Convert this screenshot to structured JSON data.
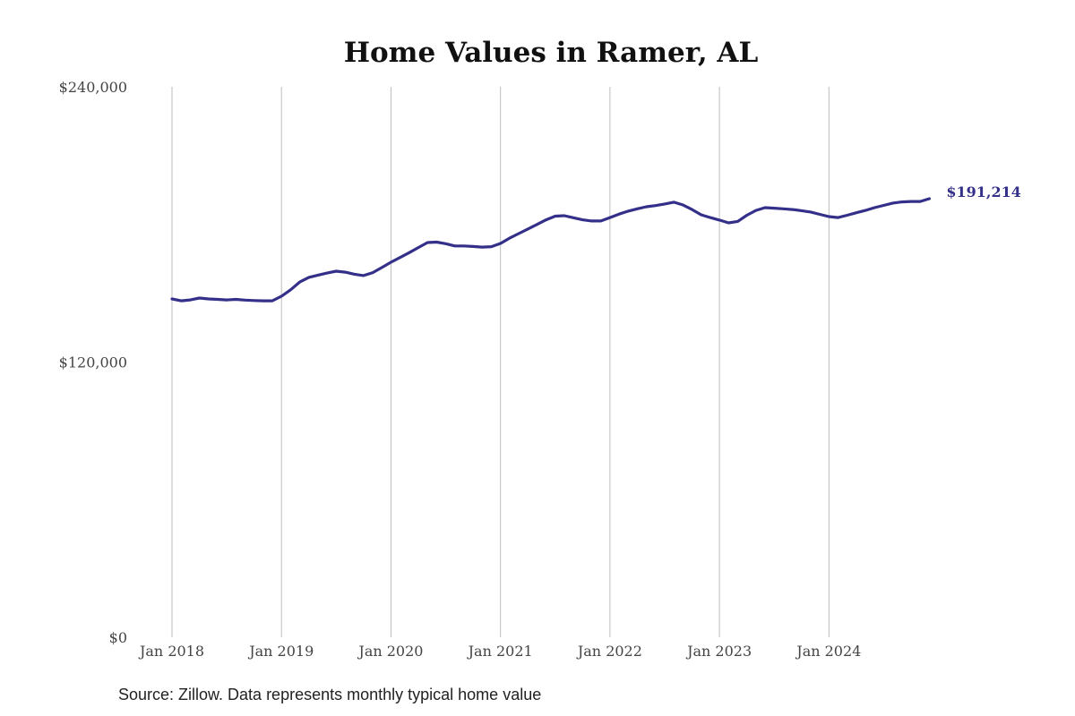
{
  "chart_data": {
    "type": "line",
    "title": "Home Values in Ramer, AL",
    "xlabel": "",
    "ylabel": "",
    "ylim": [
      0,
      240000
    ],
    "y_ticks": [
      0,
      120000,
      240000
    ],
    "y_tick_labels": [
      "$0",
      "$120,000",
      "$240,000"
    ],
    "x_tick_labels": [
      "Jan 2018",
      "Jan 2019",
      "Jan 2020",
      "Jan 2021",
      "Jan 2022",
      "Jan 2023",
      "Jan 2024"
    ],
    "x_start": "Jan 2018",
    "x_end": "Dec 2024",
    "grid": "vertical lines at each January",
    "series": [
      {
        "name": "Typical home value",
        "color": "#34308a",
        "end_label": "$191,214",
        "values": [
          147500,
          146700,
          147100,
          147900,
          147500,
          147300,
          147100,
          147300,
          147000,
          146800,
          146700,
          146700,
          148700,
          151500,
          154900,
          156900,
          157900,
          158800,
          159600,
          159200,
          158300,
          157700,
          159000,
          161200,
          163500,
          165600,
          167700,
          169900,
          172100,
          172300,
          171600,
          170600,
          170600,
          170400,
          170100,
          170300,
          171700,
          174000,
          176000,
          178000,
          180000,
          182000,
          183600,
          183800,
          182900,
          182000,
          181500,
          181500,
          183000,
          184500,
          185800,
          186800,
          187700,
          188200,
          188900,
          189700,
          188500,
          186500,
          184200,
          183000,
          181900,
          180700,
          181300,
          184000,
          186100,
          187300,
          187100,
          186800,
          186500,
          186000,
          185400,
          184400,
          183400,
          183000,
          184000,
          185100,
          186100,
          187300,
          188300,
          189300,
          189800,
          190000,
          190000,
          191214
        ]
      }
    ],
    "source": "Source: Zillow. Data represents monthly typical home value"
  }
}
